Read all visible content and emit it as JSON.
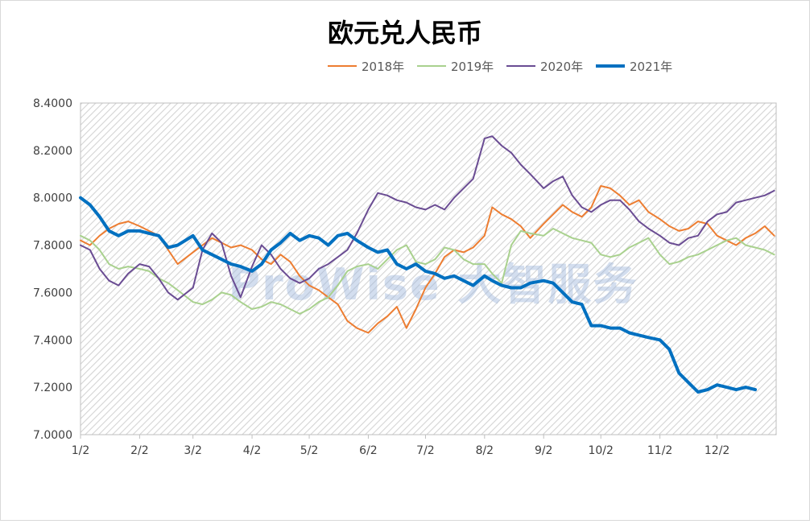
{
  "chart_data": {
    "type": "line",
    "title": "欧元兑人民币",
    "xlabel": "",
    "ylabel": "",
    "ylim": [
      7.0,
      8.4
    ],
    "yticks": [
      "7.0000",
      "7.2000",
      "7.4000",
      "7.6000",
      "7.8000",
      "8.0000",
      "8.2000",
      "8.4000"
    ],
    "xlim": [
      0,
      365
    ],
    "xtick_positions": [
      0,
      31,
      59,
      90,
      120,
      151,
      181,
      212,
      243,
      273,
      304,
      334
    ],
    "xticks": [
      "1/2",
      "2/2",
      "3/2",
      "4/2",
      "5/2",
      "6/2",
      "7/2",
      "8/2",
      "9/2",
      "10/2",
      "11/2",
      "12/2"
    ],
    "grid": false,
    "legend_position": "top",
    "watermark": "ProWise 大智服务",
    "series": [
      {
        "name": "2018年",
        "color": "#ed7d31",
        "x": [
          0,
          5,
          10,
          15,
          20,
          25,
          31,
          36,
          41,
          46,
          51,
          59,
          64,
          69,
          74,
          79,
          84,
          90,
          95,
          100,
          105,
          110,
          115,
          120,
          125,
          130,
          135,
          140,
          145,
          151,
          156,
          161,
          166,
          171,
          176,
          181,
          186,
          191,
          196,
          201,
          206,
          212,
          216,
          221,
          226,
          231,
          236,
          243,
          248,
          253,
          258,
          263,
          268,
          273,
          278,
          283,
          288,
          293,
          298,
          304,
          309,
          314,
          319,
          324,
          329,
          334,
          339,
          344,
          349,
          354,
          359,
          364
        ],
        "values": [
          7.82,
          7.8,
          7.84,
          7.87,
          7.89,
          7.9,
          7.88,
          7.86,
          7.84,
          7.78,
          7.72,
          7.77,
          7.8,
          7.83,
          7.81,
          7.79,
          7.8,
          7.78,
          7.74,
          7.72,
          7.76,
          7.73,
          7.67,
          7.63,
          7.61,
          7.58,
          7.55,
          7.48,
          7.45,
          7.43,
          7.47,
          7.5,
          7.54,
          7.45,
          7.53,
          7.62,
          7.68,
          7.75,
          7.78,
          7.77,
          7.79,
          7.84,
          7.96,
          7.93,
          7.91,
          7.88,
          7.83,
          7.89,
          7.93,
          7.97,
          7.94,
          7.92,
          7.96,
          8.05,
          8.04,
          8.01,
          7.97,
          7.99,
          7.94,
          7.91,
          7.88,
          7.86,
          7.87,
          7.9,
          7.89,
          7.84,
          7.82,
          7.8,
          7.83,
          7.85,
          7.88,
          7.84
        ]
      },
      {
        "name": "2019年",
        "color": "#a9d18e",
        "x": [
          0,
          5,
          10,
          15,
          20,
          25,
          31,
          36,
          41,
          46,
          51,
          59,
          64,
          69,
          74,
          79,
          84,
          90,
          95,
          100,
          105,
          110,
          115,
          120,
          125,
          130,
          135,
          140,
          145,
          151,
          156,
          161,
          166,
          171,
          176,
          181,
          186,
          191,
          196,
          201,
          206,
          212,
          216,
          221,
          226,
          231,
          236,
          243,
          248,
          253,
          258,
          263,
          268,
          273,
          278,
          283,
          288,
          293,
          298,
          304,
          309,
          314,
          319,
          324,
          329,
          334,
          339,
          344,
          349,
          354,
          359,
          364
        ],
        "values": [
          7.84,
          7.82,
          7.78,
          7.72,
          7.7,
          7.71,
          7.7,
          7.69,
          7.66,
          7.64,
          7.61,
          7.56,
          7.55,
          7.57,
          7.6,
          7.59,
          7.56,
          7.53,
          7.54,
          7.56,
          7.55,
          7.53,
          7.51,
          7.53,
          7.56,
          7.58,
          7.63,
          7.69,
          7.71,
          7.72,
          7.7,
          7.74,
          7.78,
          7.8,
          7.73,
          7.72,
          7.74,
          7.79,
          7.78,
          7.74,
          7.72,
          7.72,
          7.68,
          7.64,
          7.8,
          7.86,
          7.85,
          7.84,
          7.87,
          7.85,
          7.83,
          7.82,
          7.81,
          7.76,
          7.75,
          7.76,
          7.79,
          7.81,
          7.83,
          7.76,
          7.72,
          7.73,
          7.75,
          7.76,
          7.78,
          7.8,
          7.82,
          7.83,
          7.8,
          7.79,
          7.78,
          7.76
        ]
      },
      {
        "name": "2020年",
        "color": "#6a4c93",
        "x": [
          0,
          5,
          10,
          15,
          20,
          25,
          31,
          36,
          41,
          46,
          51,
          59,
          64,
          69,
          74,
          79,
          84,
          90,
          95,
          100,
          105,
          110,
          115,
          120,
          125,
          130,
          135,
          140,
          145,
          151,
          156,
          161,
          166,
          171,
          176,
          181,
          186,
          191,
          196,
          201,
          206,
          212,
          216,
          221,
          226,
          231,
          236,
          243,
          248,
          253,
          258,
          263,
          268,
          273,
          278,
          283,
          288,
          293,
          298,
          304,
          309,
          314,
          319,
          324,
          329,
          334,
          339,
          344,
          349,
          354,
          359,
          364
        ],
        "values": [
          7.8,
          7.78,
          7.7,
          7.65,
          7.63,
          7.68,
          7.72,
          7.71,
          7.66,
          7.6,
          7.57,
          7.62,
          7.78,
          7.85,
          7.81,
          7.67,
          7.58,
          7.71,
          7.8,
          7.76,
          7.7,
          7.66,
          7.64,
          7.66,
          7.7,
          7.72,
          7.75,
          7.78,
          7.85,
          7.95,
          8.02,
          8.01,
          7.99,
          7.98,
          7.96,
          7.95,
          7.97,
          7.95,
          8.0,
          8.04,
          8.08,
          8.25,
          8.26,
          8.22,
          8.19,
          8.14,
          8.1,
          8.04,
          8.07,
          8.09,
          8.01,
          7.96,
          7.94,
          7.97,
          7.99,
          7.99,
          7.95,
          7.9,
          7.87,
          7.84,
          7.81,
          7.8,
          7.83,
          7.84,
          7.9,
          7.93,
          7.94,
          7.98,
          7.99,
          8.0,
          8.01,
          8.03
        ]
      },
      {
        "name": "2021年",
        "color": "#0070c0",
        "x": [
          0,
          5,
          10,
          15,
          20,
          25,
          31,
          36,
          41,
          46,
          51,
          59,
          64,
          69,
          74,
          79,
          84,
          90,
          95,
          100,
          105,
          110,
          115,
          120,
          125,
          130,
          135,
          140,
          145,
          151,
          156,
          161,
          166,
          171,
          176,
          181,
          186,
          191,
          196,
          201,
          206,
          212,
          216,
          221,
          226,
          231,
          236,
          243,
          248,
          253,
          258,
          263,
          268,
          273,
          278,
          283,
          288,
          293,
          298,
          304,
          309,
          314,
          319,
          324,
          329,
          334,
          339,
          344,
          349,
          354
        ],
        "values": [
          8.0,
          7.97,
          7.92,
          7.86,
          7.84,
          7.86,
          7.86,
          7.85,
          7.84,
          7.79,
          7.8,
          7.84,
          7.78,
          7.76,
          7.74,
          7.72,
          7.71,
          7.69,
          7.72,
          7.78,
          7.81,
          7.85,
          7.82,
          7.84,
          7.83,
          7.8,
          7.84,
          7.85,
          7.82,
          7.79,
          7.77,
          7.78,
          7.72,
          7.7,
          7.72,
          7.69,
          7.68,
          7.66,
          7.67,
          7.65,
          7.63,
          7.67,
          7.65,
          7.63,
          7.62,
          7.62,
          7.64,
          7.65,
          7.64,
          7.6,
          7.56,
          7.55,
          7.46,
          7.46,
          7.45,
          7.45,
          7.43,
          7.42,
          7.41,
          7.4,
          7.36,
          7.26,
          7.22,
          7.18,
          7.19,
          7.21,
          7.2,
          7.19,
          7.2,
          7.19
        ]
      }
    ]
  }
}
